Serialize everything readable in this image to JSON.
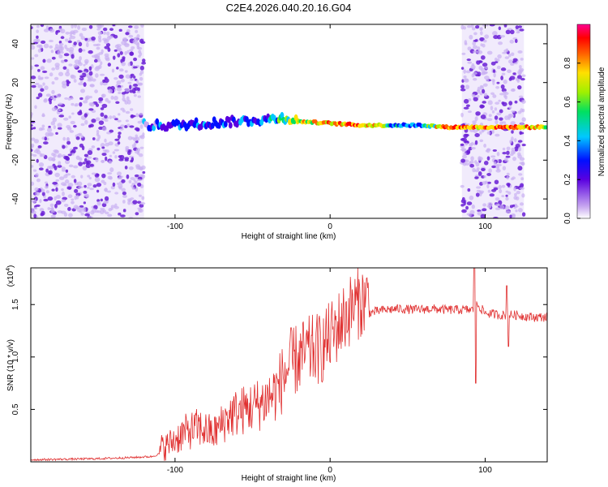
{
  "title": "C2E4.2026.040.20.16.G04",
  "colors": {
    "snr_line": "#e03030",
    "scatter": "#6a1fd6",
    "scatter_light": "#c9b0f2",
    "axes": "#000000"
  },
  "chart_data": [
    {
      "type": "heatmap",
      "title": "C2E4.2026.040.20.16.G04",
      "xlabel": "Height of straight line (km)",
      "ylabel": "Frequency (Hz)",
      "xlim": [
        -193,
        140
      ],
      "ylim": [
        -50,
        50
      ],
      "x_ticks": [
        -100,
        0,
        100
      ],
      "x_tick_labels": [
        "-100",
        "0",
        "100"
      ],
      "y_ticks": [
        -40,
        -20,
        0,
        20,
        40
      ],
      "y_tick_labels": [
        "-40",
        "-20",
        "0",
        "20",
        "40"
      ],
      "colorbar": {
        "label": "Normalized spectral amplitude",
        "range": [
          0.0,
          1.0
        ],
        "ticks": [
          0.0,
          0.2,
          0.4,
          0.6,
          0.8
        ],
        "tick_labels": [
          "0.0",
          "0.2",
          "0.4",
          "0.6",
          "0.8"
        ]
      },
      "noise_regions": [
        {
          "x_start": -193,
          "x_end": -120,
          "description": "broadband noise"
        },
        {
          "x_start": 85,
          "x_end": 125,
          "description": "broadband noise"
        }
      ],
      "signal_track": [
        {
          "x": -120,
          "freq": -2,
          "amp": 0.3
        },
        {
          "x": -100,
          "freq": -2,
          "amp": 0.35
        },
        {
          "x": -80,
          "freq": -1,
          "amp": 0.4
        },
        {
          "x": -60,
          "freq": 0,
          "amp": 0.35
        },
        {
          "x": -40,
          "freq": 1,
          "amp": 0.4
        },
        {
          "x": -30,
          "freq": 2,
          "amp": 0.6
        },
        {
          "x": -20,
          "freq": 0,
          "amp": 0.7
        },
        {
          "x": 0,
          "freq": -1,
          "amp": 0.85
        },
        {
          "x": 20,
          "freq": -2,
          "amp": 0.9
        },
        {
          "x": 40,
          "freq": -2,
          "amp": 0.5
        },
        {
          "x": 60,
          "freq": -2,
          "amp": 0.45
        },
        {
          "x": 75,
          "freq": -3,
          "amp": 0.9
        },
        {
          "x": 82,
          "freq": -3,
          "amp": 0.9
        },
        {
          "x": 130,
          "freq": -3,
          "amp": 0.8
        },
        {
          "x": 140,
          "freq": -3,
          "amp": 0.7
        }
      ]
    },
    {
      "type": "line",
      "xlabel": "Height of straight line (km)",
      "ylabel": "SNR (10 * v/v)",
      "scale_label": "(x10",
      "scale_exponent": "4",
      "scale_close": ")",
      "xlim": [
        -193,
        140
      ],
      "ylim": [
        0,
        1.85
      ],
      "x_ticks": [
        -100,
        0,
        100
      ],
      "x_tick_labels": [
        "-100",
        "0",
        "100"
      ],
      "y_ticks": [
        0.5,
        1.0,
        1.5
      ],
      "y_tick_labels": [
        "0.5",
        "1.0",
        "1.5"
      ],
      "series": [
        {
          "name": "SNR",
          "x": [
            -193,
            -150,
            -130,
            -115,
            -105,
            -95,
            -85,
            -75,
            -65,
            -55,
            -45,
            -35,
            -25,
            -15,
            -5,
            5,
            15,
            25,
            35,
            45,
            55,
            65,
            75,
            85,
            92,
            95,
            100,
            110,
            120,
            130,
            140
          ],
          "y": [
            0.02,
            0.03,
            0.04,
            0.05,
            0.1,
            0.2,
            0.25,
            0.2,
            0.35,
            0.4,
            0.45,
            0.55,
            0.8,
            0.9,
            0.95,
            1.15,
            1.35,
            1.42,
            1.45,
            1.46,
            1.45,
            1.46,
            1.45,
            1.45,
            1.45,
            1.5,
            1.42,
            1.4,
            1.4,
            1.38,
            1.38
          ]
        }
      ]
    }
  ]
}
